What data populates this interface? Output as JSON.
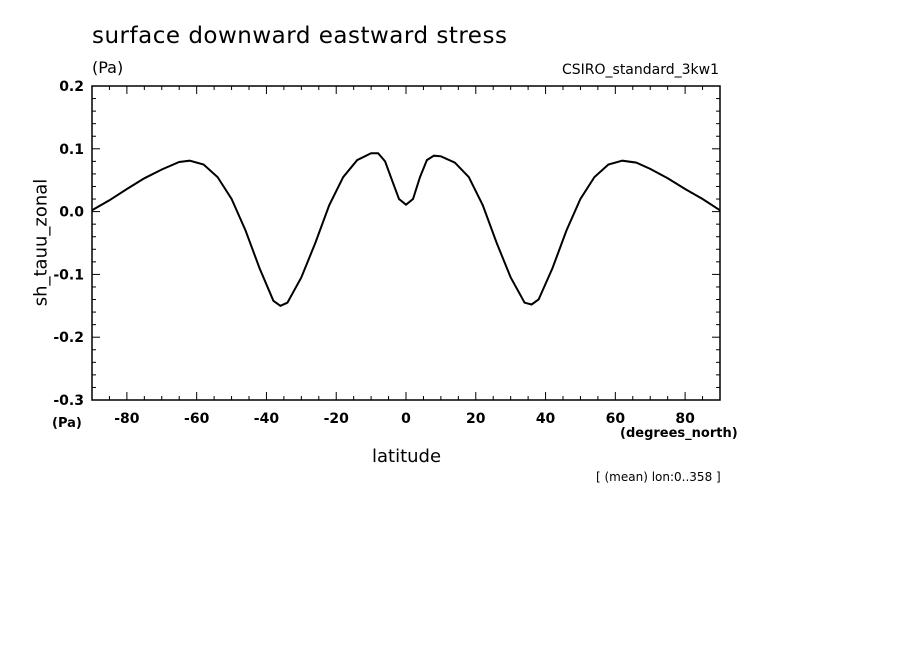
{
  "chart_data": {
    "type": "line",
    "title": "surface downward eastward stress",
    "title_units": "(Pa)",
    "model_label": "CSIRO_standard_3kw1",
    "ylabel": "sh_tauu_zonal",
    "yunits": "(Pa)",
    "xlabel": "latitude",
    "xunits": "(degrees_north)",
    "footnote": "[ (mean) lon:0..358 ]",
    "xlim": [
      -90,
      90
    ],
    "ylim": [
      -0.3,
      0.2
    ],
    "xticks": [
      -80,
      -60,
      -40,
      -20,
      0,
      20,
      40,
      60,
      80
    ],
    "yticks": [
      -0.3,
      -0.2,
      -0.1,
      0.0,
      0.1,
      0.2
    ],
    "ytick_labels": [
      "-0.3",
      "-0.2",
      "-0.1",
      "0.0",
      "0.1",
      "0.2"
    ],
    "xtick_labels": [
      "-80",
      "-60",
      "-40",
      "-20",
      "0",
      "20",
      "40",
      "60",
      "80"
    ],
    "grid": false,
    "series": [
      {
        "color": "#000000",
        "x": [
          -90,
          -85,
          -80,
          -75,
          -70,
          -65,
          -62,
          -58,
          -54,
          -50,
          -46,
          -42,
          -38,
          -36,
          -34,
          -30,
          -26,
          -22,
          -18,
          -14,
          -10,
          -8,
          -6,
          -4,
          -2,
          0,
          2,
          4,
          6,
          8,
          10,
          14,
          18,
          22,
          26,
          30,
          34,
          36,
          38,
          42,
          46,
          50,
          54,
          58,
          62,
          66,
          70,
          75,
          80,
          85,
          90
        ],
        "y": [
          0.002,
          0.018,
          0.036,
          0.053,
          0.067,
          0.079,
          0.081,
          0.075,
          0.055,
          0.02,
          -0.03,
          -0.09,
          -0.142,
          -0.15,
          -0.145,
          -0.105,
          -0.05,
          0.01,
          0.055,
          0.082,
          0.093,
          0.093,
          0.08,
          0.05,
          0.02,
          0.011,
          0.02,
          0.055,
          0.082,
          0.089,
          0.088,
          0.078,
          0.055,
          0.01,
          -0.05,
          -0.105,
          -0.145,
          -0.148,
          -0.14,
          -0.09,
          -0.03,
          0.02,
          0.055,
          0.075,
          0.081,
          0.078,
          0.068,
          0.053,
          0.036,
          0.02,
          0.002
        ]
      }
    ]
  }
}
